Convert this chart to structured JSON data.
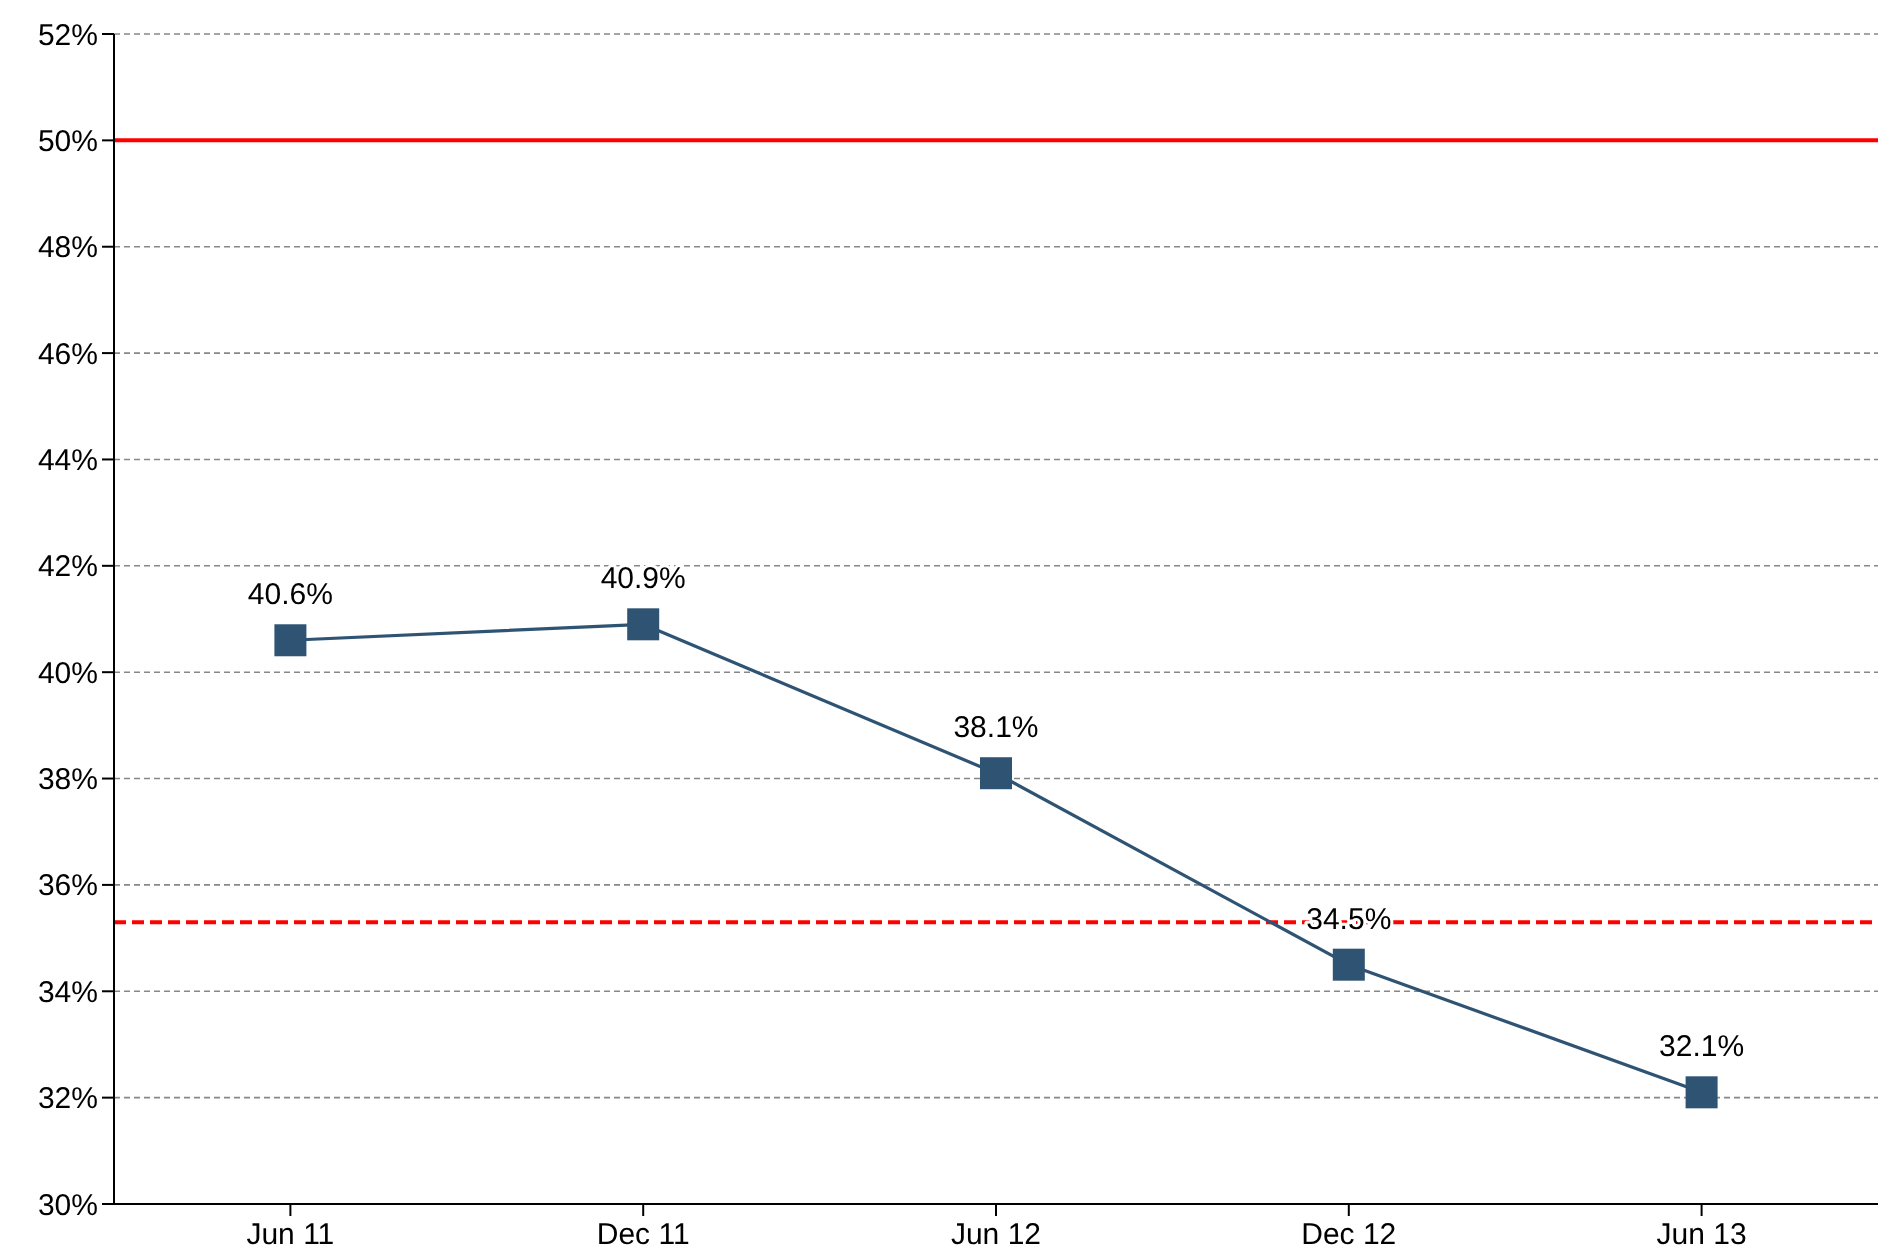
{
  "chart_data": {
    "type": "line",
    "categories": [
      "Jun 11",
      "Dec 11",
      "Jun 12",
      "Dec 12",
      "Jun 13"
    ],
    "series": [
      {
        "color": "#2f5473",
        "values": [
          40.6,
          40.9,
          38.1,
          34.5,
          32.1
        ],
        "value_labels": [
          "40.6%",
          "40.9%",
          "38.1%",
          "34.5%",
          "32.1%"
        ]
      }
    ],
    "ylim": [
      30,
      52
    ],
    "yticks": [
      {
        "value": 30,
        "label": "30%"
      },
      {
        "value": 32,
        "label": "32%"
      },
      {
        "value": 34,
        "label": "34%"
      },
      {
        "value": 36,
        "label": "36%"
      },
      {
        "value": 38,
        "label": "38%"
      },
      {
        "value": 40,
        "label": "40%"
      },
      {
        "value": 42,
        "label": "42%"
      },
      {
        "value": 44,
        "label": "44%"
      },
      {
        "value": 46,
        "label": "46%"
      },
      {
        "value": 48,
        "label": "48%"
      },
      {
        "value": 50,
        "label": "50%"
      },
      {
        "value": 52,
        "label": "52%"
      }
    ],
    "grid": "y",
    "marker": "square",
    "line_style": "solid",
    "ref_lines": [
      {
        "axis": "y",
        "value": 50,
        "color": "#ff0000",
        "line_style": "solid"
      },
      {
        "axis": "y",
        "value": 35.3,
        "color": "#ff0000",
        "line_style": "dashed"
      }
    ]
  }
}
